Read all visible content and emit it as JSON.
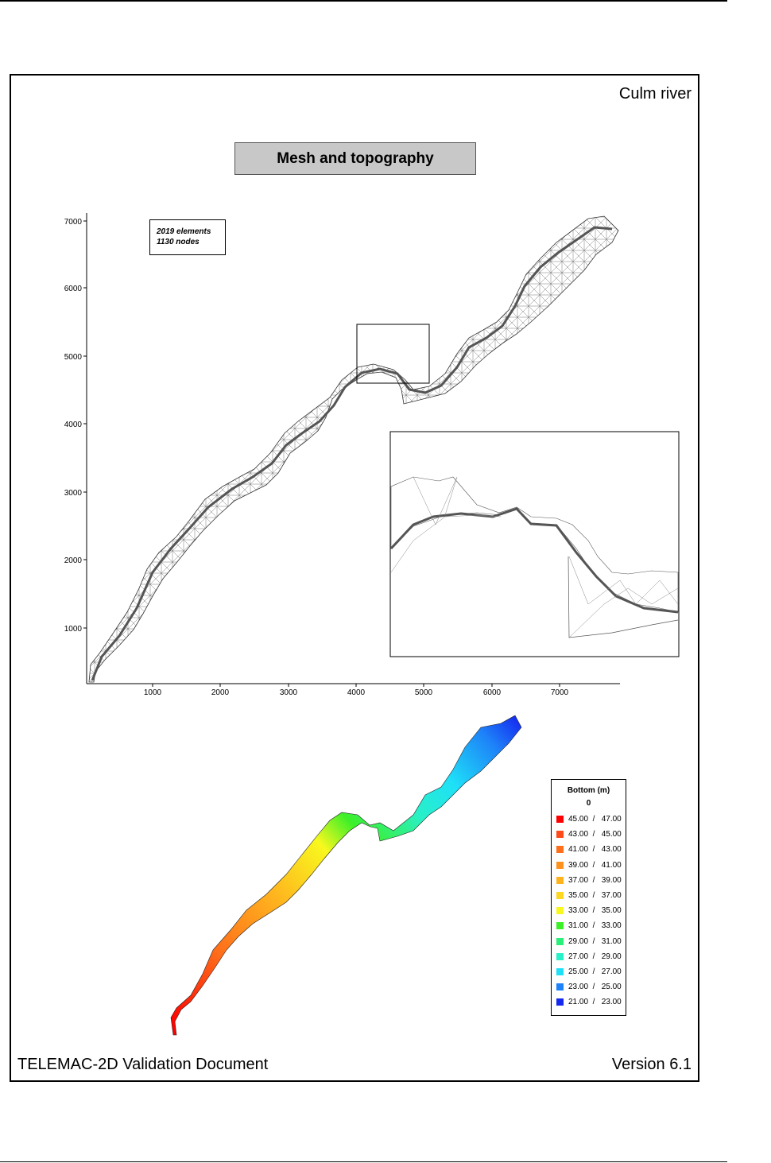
{
  "header": {
    "right_title": "Culm river"
  },
  "figure_title": "Mesh and topography",
  "mesh_info": {
    "elements": "2019 elements",
    "nodes": "1130 nodes"
  },
  "axes": {
    "y_ticks": [
      "7000",
      "6000",
      "5000",
      "4000",
      "3000",
      "2000",
      "1000"
    ],
    "x_ticks": [
      "1000",
      "2000",
      "3000",
      "4000",
      "5000",
      "6000",
      "7000"
    ]
  },
  "legend": {
    "title": "Bottom (m)",
    "subtitle": "0",
    "entries": [
      {
        "label": "45.00  /   47.00",
        "color": "#ff0000"
      },
      {
        "label": "43.00  /   45.00",
        "color": "#ff4a1c"
      },
      {
        "label": "41.00  /   43.00",
        "color": "#ff6e1a"
      },
      {
        "label": "39.00  /   41.00",
        "color": "#ff921e"
      },
      {
        "label": "37.00  /   39.00",
        "color": "#ffb41e"
      },
      {
        "label": "35.00  /   37.00",
        "color": "#ffd620"
      },
      {
        "label": "33.00  /   35.00",
        "color": "#f8f81e"
      },
      {
        "label": "31.00  /   33.00",
        "color": "#3cf028"
      },
      {
        "label": "29.00  /   31.00",
        "color": "#28f078"
      },
      {
        "label": "27.00  /   29.00",
        "color": "#28f0c8"
      },
      {
        "label": "25.00  /   27.00",
        "color": "#1ee0f8"
      },
      {
        "label": "23.00  /   25.00",
        "color": "#1e82f8"
      },
      {
        "label": "21.00  /   23.00",
        "color": "#1428f0"
      }
    ]
  },
  "footer": {
    "left": "TELEMAC-2D Validation Document",
    "right": "Version 6.1"
  }
}
